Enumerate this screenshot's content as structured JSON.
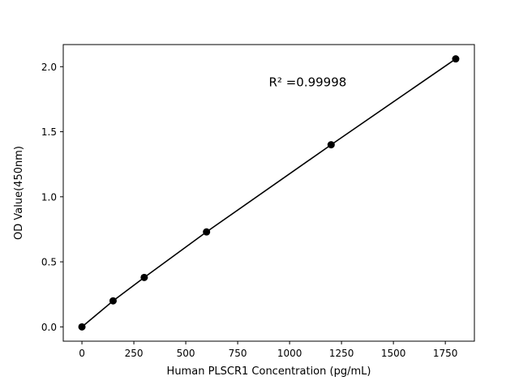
{
  "chart_data": {
    "type": "scatter",
    "title": "",
    "xlabel": "Human PLSCR1 Concentration (pg/mL)",
    "ylabel": "OD Value(450nm)",
    "x": [
      0,
      150,
      300,
      600,
      1200,
      1800
    ],
    "y": [
      0.0,
      0.2,
      0.38,
      0.73,
      1.4,
      2.06
    ],
    "line_through_points": true,
    "xlim": [
      -90,
      1890
    ],
    "ylim": [
      -0.11,
      2.17
    ],
    "xticks": [
      0,
      250,
      500,
      750,
      1000,
      1250,
      1500,
      1750
    ],
    "yticks": [
      0.0,
      0.5,
      1.0,
      1.5,
      2.0
    ],
    "annotation": {
      "text": "R² =0.99998",
      "x": 900,
      "y": 1.85
    },
    "marker_color": "#000000",
    "line_color": "#000000",
    "axis_color": "#000000",
    "background": "#ffffff",
    "grid": false,
    "legend": "none"
  }
}
